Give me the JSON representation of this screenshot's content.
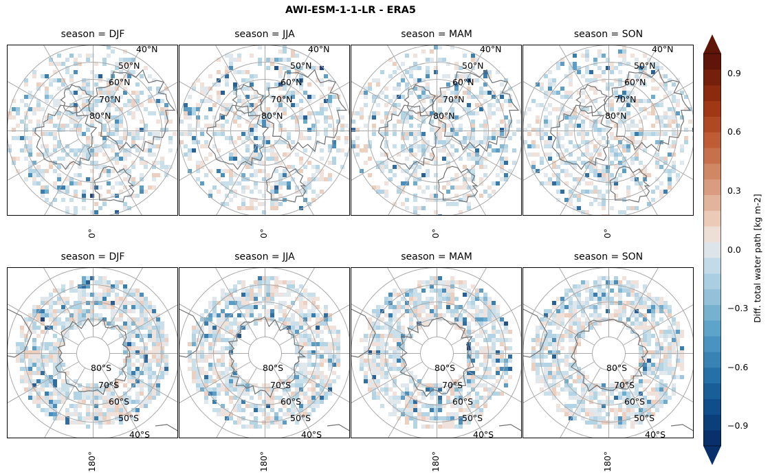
{
  "title": "AWI-ESM-1-1-LR - ERA5",
  "panels": [
    {
      "title": "season = DJF",
      "hemisphere": "north",
      "lat_labels": [
        "40°N",
        "50°N",
        "60°N",
        "70°N",
        "80°N"
      ],
      "lon_label": "0°"
    },
    {
      "title": "season = JJA",
      "hemisphere": "north",
      "lat_labels": [
        "40°N",
        "50°N",
        "60°N",
        "70°N",
        "80°N"
      ],
      "lon_label": "0°"
    },
    {
      "title": "season = MAM",
      "hemisphere": "north",
      "lat_labels": [
        "40°N",
        "50°N",
        "60°N",
        "70°N",
        "80°N"
      ],
      "lon_label": "0°"
    },
    {
      "title": "season = SON",
      "hemisphere": "north",
      "lat_labels": [
        "40°N",
        "50°N",
        "60°N",
        "70°N",
        "80°N"
      ],
      "lon_label": "0°"
    },
    {
      "title": "season = DJF",
      "hemisphere": "south",
      "lat_labels": [
        "80°S",
        "70°S",
        "60°S",
        "50°S",
        "40°S"
      ],
      "lon_label": "180°"
    },
    {
      "title": "season = JJA",
      "hemisphere": "south",
      "lat_labels": [
        "80°S",
        "70°S",
        "60°S",
        "50°S",
        "40°S"
      ],
      "lon_label": "180°"
    },
    {
      "title": "season = MAM",
      "hemisphere": "south",
      "lat_labels": [
        "80°S",
        "70°S",
        "60°S",
        "50°S",
        "40°S"
      ],
      "lon_label": "180°"
    },
    {
      "title": "season = SON",
      "hemisphere": "south",
      "lat_labels": [
        "80°S",
        "70°S",
        "60°S",
        "50°S",
        "40°S"
      ],
      "lon_label": "180°"
    }
  ],
  "colorbar": {
    "label": "Diff. total water path [kg m-2]",
    "tick_labels": [
      "0.9",
      "0.6",
      "0.3",
      "0.0",
      "−0.3",
      "−0.6",
      "−0.9"
    ],
    "range": [
      -1.0,
      1.0
    ],
    "colors": [
      "#08306b",
      "#0b3f7a",
      "#104e8b",
      "#1a5e98",
      "#2570a6",
      "#3882b4",
      "#4a92c0",
      "#5ea3c9",
      "#77b1d0",
      "#93c1d9",
      "#aacfe2",
      "#c3dbe8",
      "#dde5eb",
      "#eedfd6",
      "#ebcab8",
      "#e3b49c",
      "#d99c80",
      "#cf8764",
      "#c6714b",
      "#bd5c35",
      "#af4923",
      "#a03816",
      "#8b2a0e",
      "#74200b",
      "#5f1608"
    ],
    "under_color": "#08306b",
    "over_color": "#5f1608"
  }
}
